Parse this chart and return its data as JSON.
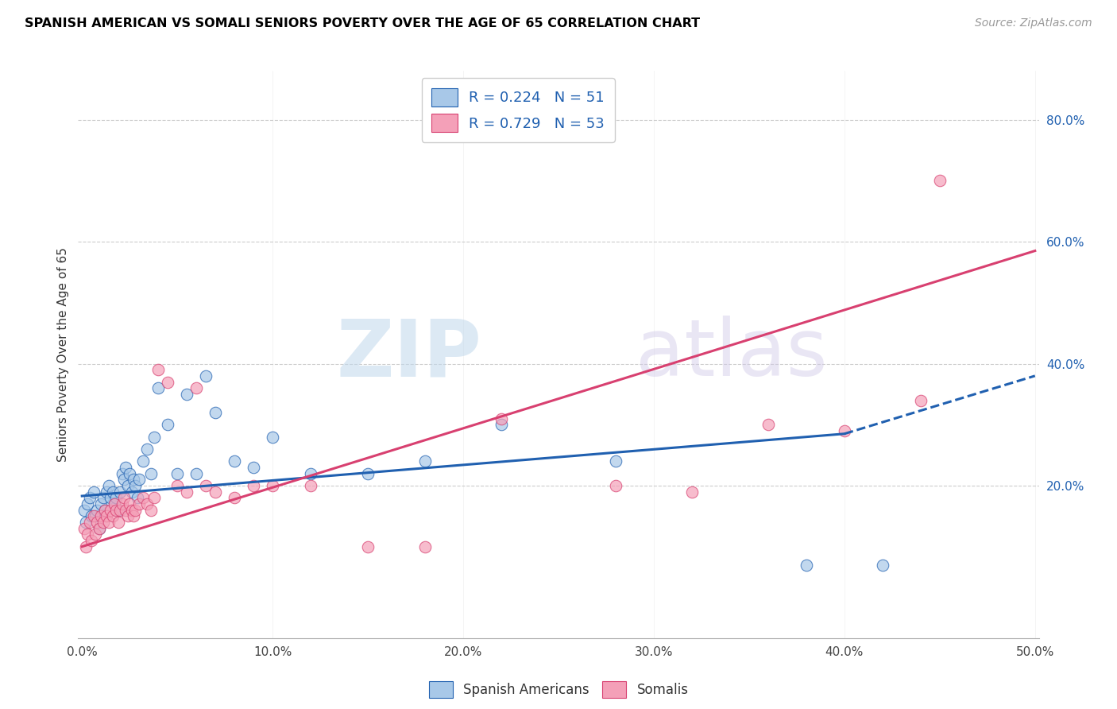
{
  "title": "SPANISH AMERICAN VS SOMALI SENIORS POVERTY OVER THE AGE OF 65 CORRELATION CHART",
  "source": "Source: ZipAtlas.com",
  "ylabel": "Seniors Poverty Over the Age of 65",
  "xlim": [
    -0.002,
    0.502
  ],
  "ylim": [
    -0.05,
    0.88
  ],
  "xticks": [
    0.0,
    0.1,
    0.2,
    0.3,
    0.4,
    0.5
  ],
  "xticklabels": [
    "0.0%",
    "10.0%",
    "20.0%",
    "30.0%",
    "40.0%",
    "50.0%"
  ],
  "yticks_right": [
    0.2,
    0.4,
    0.6,
    0.8
  ],
  "ytick_right_labels": [
    "20.0%",
    "40.0%",
    "60.0%",
    "80.0%"
  ],
  "legend_label1": "R = 0.224   N = 51",
  "legend_label2": "R = 0.729   N = 53",
  "color_blue": "#A8C8E8",
  "color_pink": "#F4A0B8",
  "line_color_blue": "#2060B0",
  "line_color_pink": "#D84070",
  "watermark_zip": "ZIP",
  "watermark_atlas": "atlas",
  "bottom_legend1": "Spanish Americans",
  "bottom_legend2": "Somalis",
  "spanish_x": [
    0.001,
    0.002,
    0.003,
    0.004,
    0.005,
    0.006,
    0.007,
    0.008,
    0.009,
    0.01,
    0.011,
    0.012,
    0.013,
    0.014,
    0.015,
    0.016,
    0.017,
    0.018,
    0.019,
    0.02,
    0.021,
    0.022,
    0.023,
    0.024,
    0.025,
    0.026,
    0.027,
    0.028,
    0.029,
    0.03,
    0.032,
    0.034,
    0.036,
    0.038,
    0.04,
    0.045,
    0.05,
    0.055,
    0.06,
    0.065,
    0.07,
    0.08,
    0.09,
    0.1,
    0.12,
    0.15,
    0.18,
    0.22,
    0.28,
    0.38,
    0.42
  ],
  "spanish_y": [
    0.16,
    0.14,
    0.17,
    0.18,
    0.15,
    0.19,
    0.15,
    0.16,
    0.13,
    0.17,
    0.18,
    0.16,
    0.19,
    0.2,
    0.18,
    0.19,
    0.17,
    0.18,
    0.16,
    0.19,
    0.22,
    0.21,
    0.23,
    0.2,
    0.22,
    0.19,
    0.21,
    0.2,
    0.18,
    0.21,
    0.24,
    0.26,
    0.22,
    0.28,
    0.36,
    0.3,
    0.22,
    0.35,
    0.22,
    0.38,
    0.32,
    0.24,
    0.23,
    0.28,
    0.22,
    0.22,
    0.24,
    0.3,
    0.24,
    0.07,
    0.07
  ],
  "somali_x": [
    0.001,
    0.002,
    0.003,
    0.004,
    0.005,
    0.006,
    0.007,
    0.008,
    0.009,
    0.01,
    0.011,
    0.012,
    0.013,
    0.014,
    0.015,
    0.016,
    0.017,
    0.018,
    0.019,
    0.02,
    0.021,
    0.022,
    0.023,
    0.024,
    0.025,
    0.026,
    0.027,
    0.028,
    0.03,
    0.032,
    0.034,
    0.036,
    0.038,
    0.04,
    0.045,
    0.05,
    0.055,
    0.06,
    0.065,
    0.07,
    0.08,
    0.09,
    0.1,
    0.12,
    0.15,
    0.18,
    0.22,
    0.28,
    0.32,
    0.36,
    0.4,
    0.44,
    0.45
  ],
  "somali_y": [
    0.13,
    0.1,
    0.12,
    0.14,
    0.11,
    0.15,
    0.12,
    0.14,
    0.13,
    0.15,
    0.14,
    0.16,
    0.15,
    0.14,
    0.16,
    0.15,
    0.17,
    0.16,
    0.14,
    0.16,
    0.17,
    0.18,
    0.16,
    0.15,
    0.17,
    0.16,
    0.15,
    0.16,
    0.17,
    0.18,
    0.17,
    0.16,
    0.18,
    0.39,
    0.37,
    0.2,
    0.19,
    0.36,
    0.2,
    0.19,
    0.18,
    0.2,
    0.2,
    0.2,
    0.1,
    0.1,
    0.31,
    0.2,
    0.19,
    0.3,
    0.29,
    0.34,
    0.7
  ],
  "blue_line_x0": 0.0,
  "blue_line_y0": 0.183,
  "blue_line_x1": 0.4,
  "blue_line_y1": 0.285,
  "blue_line_xdash1": 0.4,
  "blue_line_ydash1": 0.285,
  "blue_line_xdash2": 0.5,
  "blue_line_ydash2": 0.38,
  "pink_line_x0": 0.0,
  "pink_line_y0": 0.1,
  "pink_line_x1": 0.5,
  "pink_line_y1": 0.585
}
